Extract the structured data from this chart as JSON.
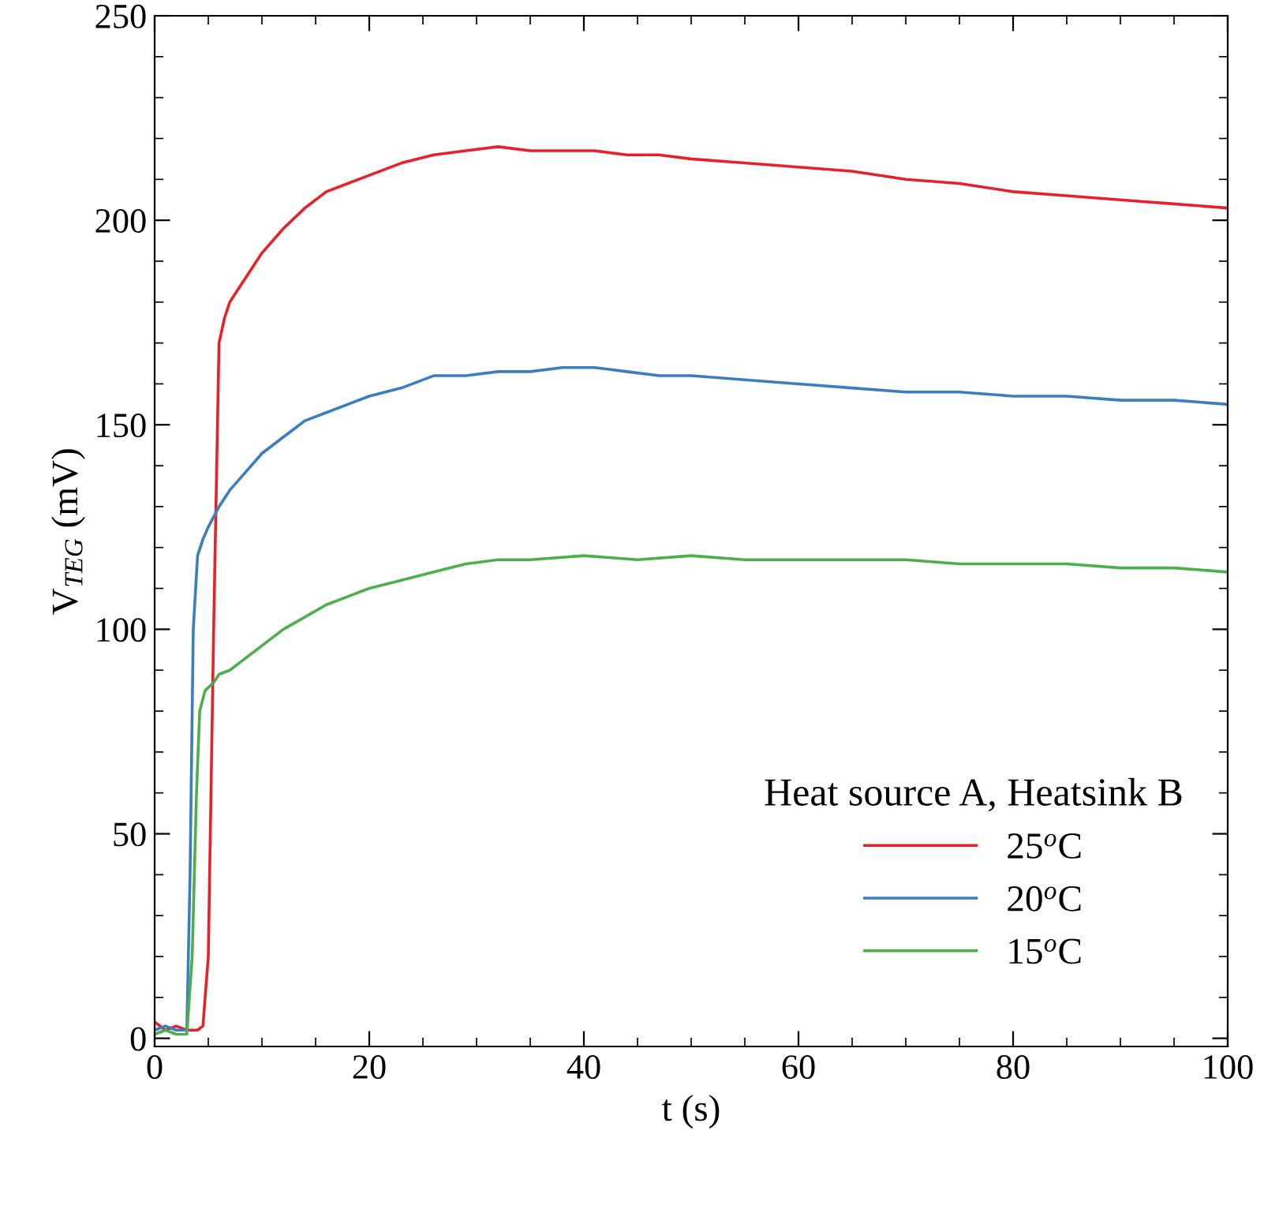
{
  "chart_data": {
    "type": "line",
    "xlabel": "t (s)",
    "ylabel": "V$_{TEG}$ (mV)",
    "legend_title": "Heat source A, Heatsink B",
    "legend": "bottom right",
    "grid": false,
    "marker": "none",
    "line_style": "solid",
    "xlim": [
      0,
      100
    ],
    "xticks": [
      0,
      20,
      40,
      60,
      80,
      100
    ],
    "ylim": [
      -2,
      250
    ],
    "yticks": [
      0,
      50,
      100,
      150,
      200,
      250
    ],
    "series": [
      {
        "name": "25$^{o}$C",
        "color": "#e8202a",
        "x": [
          0,
          1,
          2,
          3,
          4,
          4.5,
          5,
          5.5,
          6,
          6.5,
          7,
          8,
          9,
          10,
          12,
          14,
          16,
          18,
          20,
          23,
          26,
          29,
          32,
          35,
          38,
          41,
          44,
          47,
          50,
          55,
          60,
          65,
          70,
          75,
          80,
          85,
          90,
          95,
          100
        ],
        "values": [
          4,
          2,
          3,
          2,
          2,
          3,
          20,
          100,
          170,
          176,
          180,
          184,
          188,
          192,
          198,
          203,
          207,
          209,
          211,
          214,
          216,
          217,
          218,
          217,
          217,
          217,
          216,
          216,
          215,
          214,
          213,
          212,
          210,
          209,
          207,
          206,
          205,
          204,
          203
        ]
      },
      {
        "name": "20$^{o}$C",
        "color": "#3a7dc1",
        "x": [
          0,
          1,
          2,
          3,
          3.3,
          3.6,
          4,
          4.5,
          5,
          6,
          7,
          8,
          10,
          12,
          14,
          16,
          18,
          20,
          23,
          26,
          29,
          32,
          35,
          38,
          41,
          44,
          47,
          50,
          55,
          60,
          65,
          70,
          75,
          80,
          85,
          90,
          95,
          100
        ],
        "values": [
          2,
          3,
          2,
          2,
          40,
          100,
          118,
          122,
          125,
          130,
          134,
          137,
          143,
          147,
          151,
          153,
          155,
          157,
          159,
          162,
          162,
          163,
          163,
          164,
          164,
          163,
          162,
          162,
          161,
          160,
          159,
          158,
          158,
          157,
          157,
          156,
          156,
          155
        ]
      },
      {
        "name": "15$^{o}$C",
        "color": "#4cae4c",
        "x": [
          0,
          1,
          2,
          3,
          3.5,
          3.9,
          4.2,
          4.7,
          5.5,
          6,
          7,
          8,
          10,
          12,
          14,
          16,
          18,
          20,
          23,
          26,
          29,
          32,
          35,
          40,
          45,
          50,
          55,
          60,
          65,
          70,
          75,
          80,
          85,
          90,
          95,
          100
        ],
        "values": [
          1,
          2,
          1,
          1,
          20,
          60,
          80,
          85,
          87,
          89,
          90,
          92,
          96,
          100,
          103,
          106,
          108,
          110,
          112,
          114,
          116,
          117,
          117,
          118,
          117,
          118,
          117,
          117,
          117,
          117,
          116,
          116,
          116,
          115,
          115,
          114
        ]
      }
    ]
  }
}
